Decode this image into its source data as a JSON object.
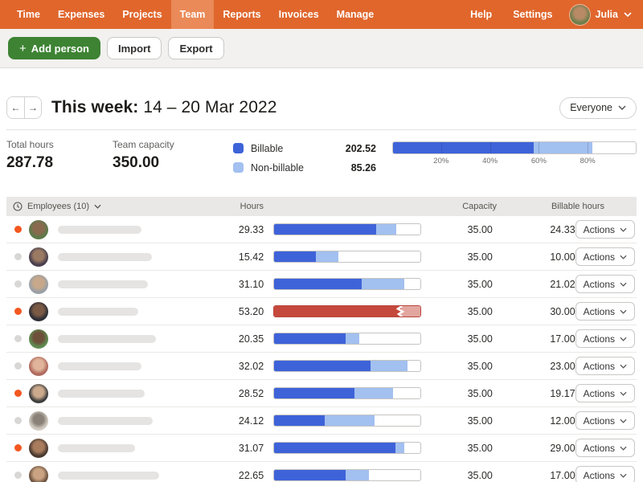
{
  "nav": {
    "items": [
      {
        "label": "Time"
      },
      {
        "label": "Expenses"
      },
      {
        "label": "Projects"
      },
      {
        "label": "Team"
      },
      {
        "label": "Reports"
      },
      {
        "label": "Invoices"
      },
      {
        "label": "Manage"
      }
    ],
    "active_item": "Team",
    "help_label": "Help",
    "settings_label": "Settings",
    "user_name": "Julia"
  },
  "toolbar": {
    "add_person_label": "Add person",
    "import_label": "Import",
    "export_label": "Export"
  },
  "week_header": {
    "title_prefix": "This week:",
    "date_range": "14 – 20 Mar 2022",
    "filter_label": "Everyone"
  },
  "summary": {
    "total_hours_label": "Total hours",
    "total_hours": "287.78",
    "team_capacity_label": "Team capacity",
    "team_capacity": "350.00",
    "billable_label": "Billable",
    "billable_value": "202.52",
    "non_billable_label": "Non-billable",
    "non_billable_value": "85.26",
    "capacity_bar": {
      "billable_pct": 57.86,
      "nonbillable_pct": 24.36,
      "ticks": [
        "20%",
        "40%",
        "60%",
        "80%"
      ]
    }
  },
  "table": {
    "header": {
      "employees": "Employees (10)",
      "hours": "Hours",
      "capacity": "Capacity",
      "billable_hours": "Billable hours"
    },
    "rows": [
      {
        "active": true,
        "hours": "29.33",
        "capacity": "35.00",
        "billable": "24.33",
        "actions_label": "Actions",
        "over_capacity": false,
        "bar": {
          "billable_pct": 69.5,
          "nonbillable_pct": 14.3
        },
        "name_width": 104,
        "avatar": {
          "inner": "#8a6a4f",
          "outer": "#5d7a4a"
        }
      },
      {
        "active": false,
        "hours": "15.42",
        "capacity": "35.00",
        "billable": "10.00",
        "actions_label": "Actions",
        "over_capacity": false,
        "bar": {
          "billable_pct": 28.6,
          "nonbillable_pct": 15.5
        },
        "name_width": 117,
        "avatar": {
          "inner": "#9a7a62",
          "outer": "#4a3f4e"
        }
      },
      {
        "active": false,
        "hours": "31.10",
        "capacity": "35.00",
        "billable": "21.02",
        "actions_label": "Actions",
        "over_capacity": false,
        "bar": {
          "billable_pct": 60.1,
          "nonbillable_pct": 28.8
        },
        "name_width": 112,
        "avatar": {
          "inner": "#c7a88a",
          "outer": "#9aa0a6"
        }
      },
      {
        "active": true,
        "hours": "53.20",
        "capacity": "35.00",
        "billable": "30.00",
        "actions_label": "Actions",
        "over_capacity": true,
        "bar": {
          "red_pct": 87,
          "light_pct": 13
        },
        "name_width": 100,
        "avatar": {
          "inner": "#7a5a44",
          "outer": "#2e2e36"
        }
      },
      {
        "active": false,
        "hours": "20.35",
        "capacity": "35.00",
        "billable": "17.00",
        "actions_label": "Actions",
        "over_capacity": false,
        "bar": {
          "billable_pct": 48.6,
          "nonbillable_pct": 9.6
        },
        "name_width": 122,
        "avatar": {
          "inner": "#6d4f3a",
          "outer": "#5f8a50"
        }
      },
      {
        "active": false,
        "hours": "32.02",
        "capacity": "35.00",
        "billable": "23.00",
        "actions_label": "Actions",
        "over_capacity": false,
        "bar": {
          "billable_pct": 65.7,
          "nonbillable_pct": 25.8
        },
        "name_width": 104,
        "avatar": {
          "inner": "#e0b49a",
          "outer": "#b06a5e"
        }
      },
      {
        "active": true,
        "hours": "28.52",
        "capacity": "35.00",
        "billable": "19.17",
        "actions_label": "Actions",
        "over_capacity": false,
        "bar": {
          "billable_pct": 54.8,
          "nonbillable_pct": 26.7
        },
        "name_width": 108,
        "avatar": {
          "inner": "#caa98c",
          "outer": "#3f3f3f"
        }
      },
      {
        "active": false,
        "hours": "24.12",
        "capacity": "35.00",
        "billable": "12.00",
        "actions_label": "Actions",
        "over_capacity": false,
        "bar": {
          "billable_pct": 34.3,
          "nonbillable_pct": 34.6
        },
        "name_width": 118,
        "avatar": {
          "inner": "#8a8278",
          "outer": "#cfc9bf"
        }
      },
      {
        "active": true,
        "hours": "31.07",
        "capacity": "35.00",
        "billable": "29.00",
        "actions_label": "Actions",
        "over_capacity": false,
        "bar": {
          "billable_pct": 82.9,
          "nonbillable_pct": 5.9
        },
        "name_width": 96,
        "avatar": {
          "inner": "#a97c5e",
          "outer": "#4a3a30"
        }
      },
      {
        "active": false,
        "hours": "22.65",
        "capacity": "35.00",
        "billable": "17.00",
        "actions_label": "Actions",
        "over_capacity": false,
        "bar": {
          "billable_pct": 48.6,
          "nonbillable_pct": 16.1
        },
        "name_width": 126,
        "avatar": {
          "inner": "#caa482",
          "outer": "#6e5440"
        }
      }
    ]
  },
  "colors": {
    "nav_orange": "#e0662c",
    "nav_active_orange": "#ea8a58",
    "add_button_green": "#3d8333",
    "billable_blue": "#3e63d9",
    "nonbillable_blue": "#a2c0f0",
    "overage_red": "#c5483c",
    "overage_light_red": "#e2a69e",
    "active_dot_orange": "#f3571f",
    "inactive_dot_gray": "#d8d7d5"
  }
}
